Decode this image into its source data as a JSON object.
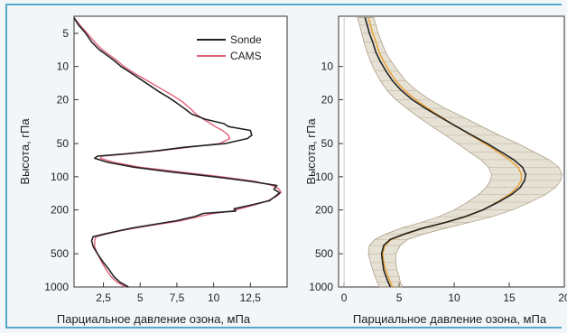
{
  "chart_data": [
    {
      "type": "line",
      "xlabel": "Парциальное давление озона, мПа",
      "ylabel": "Высота, гПа",
      "xlim": [
        0.5,
        15
      ],
      "ylim": [
        1000,
        3.5
      ],
      "yscale": "log",
      "xticks": [
        "2,5",
        "5",
        "7,5",
        "10",
        "12,5"
      ],
      "xtick_values": [
        2.5,
        5,
        7.5,
        10,
        12.5
      ],
      "yticks": [
        "5",
        "10",
        "20",
        "50",
        "100",
        "200",
        "500",
        "1000"
      ],
      "ytick_values": [
        5,
        10,
        20,
        50,
        100,
        200,
        500,
        1000
      ],
      "legend_position": "top-right",
      "series": [
        {
          "name": "Sonde",
          "color": "#222222",
          "points": [
            [
              4.2,
              1000
            ],
            [
              3.6,
              900
            ],
            [
              3.2,
              800
            ],
            [
              2.9,
              700
            ],
            [
              2.5,
              600
            ],
            [
              2.1,
              500
            ],
            [
              1.8,
              430
            ],
            [
              1.7,
              380
            ],
            [
              1.8,
              350
            ],
            [
              2.6,
              330
            ],
            [
              3.5,
              310
            ],
            [
              4.6,
              290
            ],
            [
              6.0,
              270
            ],
            [
              7.5,
              250
            ],
            [
              8.7,
              230
            ],
            [
              9.3,
              215
            ],
            [
              11.5,
              205
            ],
            [
              11.4,
              195
            ],
            [
              12.6,
              180
            ],
            [
              13.8,
              165
            ],
            [
              14.2,
              150
            ],
            [
              14.5,
              140
            ],
            [
              14.1,
              130
            ],
            [
              14.3,
              120
            ],
            [
              12.5,
              110
            ],
            [
              10.0,
              100
            ],
            [
              7.0,
              90
            ],
            [
              4.6,
              82
            ],
            [
              2.8,
              74
            ],
            [
              1.9,
              68
            ],
            [
              2.1,
              65
            ],
            [
              4.0,
              62
            ],
            [
              6.2,
              58
            ],
            [
              8.0,
              54
            ],
            [
              10.8,
              50
            ],
            [
              12.3,
              45
            ],
            [
              12.6,
              42
            ],
            [
              12.5,
              38
            ],
            [
              11.0,
              35
            ],
            [
              10.7,
              33
            ],
            [
              9.4,
              30
            ],
            [
              8.5,
              27
            ],
            [
              8.0,
              24
            ],
            [
              7.4,
              21
            ],
            [
              6.9,
              19
            ],
            [
              6.3,
              17
            ],
            [
              5.7,
              15
            ],
            [
              5.0,
              13
            ],
            [
              4.4,
              11.5
            ],
            [
              3.7,
              10
            ],
            [
              3.3,
              9
            ],
            [
              2.8,
              8
            ],
            [
              2.2,
              7
            ],
            [
              1.7,
              6
            ],
            [
              1.3,
              5
            ],
            [
              0.8,
              4.2
            ],
            [
              0.5,
              3.6
            ]
          ]
        },
        {
          "name": "CAMS",
          "color": "#e0607a",
          "points": [
            [
              4.0,
              1000
            ],
            [
              3.4,
              900
            ],
            [
              3.0,
              800
            ],
            [
              2.7,
              700
            ],
            [
              2.4,
              600
            ],
            [
              2.1,
              500
            ],
            [
              1.9,
              430
            ],
            [
              1.9,
              380
            ],
            [
              2.0,
              350
            ],
            [
              2.7,
              330
            ],
            [
              3.6,
              310
            ],
            [
              4.8,
              290
            ],
            [
              6.2,
              270
            ],
            [
              7.8,
              250
            ],
            [
              9.0,
              230
            ],
            [
              10.0,
              215
            ],
            [
              11.2,
              205
            ],
            [
              11.8,
              195
            ],
            [
              12.8,
              180
            ],
            [
              13.7,
              165
            ],
            [
              14.3,
              150
            ],
            [
              14.6,
              138
            ],
            [
              14.4,
              128
            ],
            [
              14.0,
              120
            ],
            [
              12.8,
              110
            ],
            [
              10.5,
              100
            ],
            [
              7.6,
              90
            ],
            [
              5.0,
              82
            ],
            [
              3.2,
              74
            ],
            [
              2.3,
              68
            ],
            [
              2.4,
              65
            ],
            [
              4.2,
              62
            ],
            [
              6.4,
              58
            ],
            [
              8.3,
              54
            ],
            [
              10.4,
              50
            ],
            [
              11.1,
              45
            ],
            [
              11.0,
              42
            ],
            [
              10.6,
              38
            ],
            [
              10.1,
              35
            ],
            [
              9.8,
              33
            ],
            [
              9.3,
              30
            ],
            [
              8.8,
              27
            ],
            [
              8.4,
              24
            ],
            [
              7.9,
              21
            ],
            [
              7.4,
              19
            ],
            [
              6.8,
              17
            ],
            [
              6.1,
              15
            ],
            [
              5.3,
              13
            ],
            [
              4.6,
              11.5
            ],
            [
              3.9,
              10
            ],
            [
              3.5,
              9
            ],
            [
              3.0,
              8
            ],
            [
              2.4,
              7
            ],
            [
              1.9,
              6
            ],
            [
              1.4,
              5
            ],
            [
              0.9,
              4.2
            ],
            [
              0.5,
              3.6
            ]
          ]
        }
      ]
    },
    {
      "type": "line",
      "xlabel": "Парциальное давление озона, мПа",
      "ylabel": "Высота, гПа",
      "xlim": [
        -0.5,
        20
      ],
      "ylim": [
        1000,
        3.5
      ],
      "yscale": "log",
      "xticks": [
        "0",
        "5",
        "10",
        "15",
        "20"
      ],
      "xtick_values": [
        0,
        5,
        10,
        15,
        20
      ],
      "yticks": [
        "10",
        "20",
        "50",
        "100",
        "200",
        "500",
        "1000"
      ],
      "ytick_values": [
        10,
        20,
        50,
        100,
        200,
        500,
        1000
      ],
      "series": [
        {
          "color": "#222222",
          "points": [
            [
              4.2,
              1000
            ],
            [
              4.0,
              900
            ],
            [
              3.8,
              800
            ],
            [
              3.6,
              700
            ],
            [
              3.5,
              600
            ],
            [
              3.4,
              500
            ],
            [
              3.6,
              420
            ],
            [
              4.2,
              370
            ],
            [
              5.5,
              330
            ],
            [
              7.3,
              290
            ],
            [
              9.2,
              260
            ],
            [
              11.0,
              230
            ],
            [
              12.6,
              200
            ],
            [
              14.0,
              170
            ],
            [
              15.2,
              145
            ],
            [
              16.0,
              125
            ],
            [
              16.4,
              108
            ],
            [
              16.5,
              95
            ],
            [
              16.2,
              82
            ],
            [
              15.4,
              70
            ],
            [
              14.3,
              60
            ],
            [
              13.0,
              50
            ],
            [
              11.6,
              42
            ],
            [
              10.2,
              35
            ],
            [
              8.8,
              29
            ],
            [
              7.4,
              24
            ],
            [
              6.2,
              20
            ],
            [
              5.2,
              16.5
            ],
            [
              4.4,
              13.5
            ],
            [
              3.8,
              11
            ],
            [
              3.3,
              9
            ],
            [
              2.9,
              7.5
            ],
            [
              2.6,
              6
            ],
            [
              2.3,
              5
            ],
            [
              2.1,
              4.2
            ],
            [
              1.9,
              3.6
            ]
          ]
        },
        {
          "color": "#e8a030",
          "points": [
            [
              4.4,
              1000
            ],
            [
              4.2,
              900
            ],
            [
              4.0,
              800
            ],
            [
              3.8,
              700
            ],
            [
              3.6,
              600
            ],
            [
              3.5,
              500
            ],
            [
              3.7,
              420
            ],
            [
              4.3,
              370
            ],
            [
              5.6,
              330
            ],
            [
              7.4,
              290
            ],
            [
              9.3,
              260
            ],
            [
              11.1,
              230
            ],
            [
              12.6,
              200
            ],
            [
              13.9,
              170
            ],
            [
              15.0,
              145
            ],
            [
              15.7,
              125
            ],
            [
              16.1,
              108
            ],
            [
              16.1,
              95
            ],
            [
              15.8,
              82
            ],
            [
              15.0,
              70
            ],
            [
              14.0,
              60
            ],
            [
              12.8,
              50
            ],
            [
              11.5,
              42
            ],
            [
              10.2,
              35
            ],
            [
              8.9,
              29
            ],
            [
              7.6,
              24
            ],
            [
              6.5,
              20
            ],
            [
              5.5,
              16.5
            ],
            [
              4.7,
              13.5
            ],
            [
              4.1,
              11
            ],
            [
              3.6,
              9
            ],
            [
              3.2,
              7.5
            ],
            [
              2.9,
              6
            ],
            [
              2.6,
              5
            ],
            [
              2.4,
              4.2
            ],
            [
              2.2,
              3.6
            ]
          ]
        }
      ],
      "band": {
        "color": "#b8a888",
        "points": [
          [
            3.2,
            5.3,
            1000
          ],
          [
            3.0,
            5.1,
            900
          ],
          [
            2.8,
            5.0,
            800
          ],
          [
            2.6,
            4.8,
            700
          ],
          [
            2.4,
            4.7,
            600
          ],
          [
            2.2,
            4.7,
            500
          ],
          [
            2.3,
            5.1,
            420
          ],
          [
            2.8,
            5.8,
            370
          ],
          [
            3.8,
            7.3,
            330
          ],
          [
            5.3,
            9.4,
            290
          ],
          [
            7.0,
            11.4,
            260
          ],
          [
            8.6,
            13.5,
            230
          ],
          [
            10.0,
            15.3,
            200
          ],
          [
            11.2,
            16.9,
            170
          ],
          [
            12.2,
            18.3,
            145
          ],
          [
            12.9,
            19.2,
            125
          ],
          [
            13.3,
            19.7,
            108
          ],
          [
            13.4,
            19.8,
            95
          ],
          [
            13.1,
            19.5,
            82
          ],
          [
            12.4,
            18.6,
            70
          ],
          [
            11.4,
            17.3,
            60
          ],
          [
            10.3,
            15.8,
            50
          ],
          [
            9.2,
            14.1,
            42
          ],
          [
            8.0,
            12.5,
            35
          ],
          [
            6.8,
            10.9,
            29
          ],
          [
            5.7,
            9.2,
            24
          ],
          [
            4.7,
            7.8,
            20
          ],
          [
            3.9,
            6.6,
            16.5
          ],
          [
            3.3,
            5.6,
            13.5
          ],
          [
            2.8,
            4.9,
            11
          ],
          [
            2.4,
            4.3,
            9
          ],
          [
            2.1,
            3.8,
            7.5
          ],
          [
            1.8,
            3.4,
            6
          ],
          [
            1.6,
            3.1,
            5
          ],
          [
            1.4,
            2.9,
            4.2
          ],
          [
            1.2,
            2.7,
            3.6
          ]
        ]
      }
    }
  ]
}
